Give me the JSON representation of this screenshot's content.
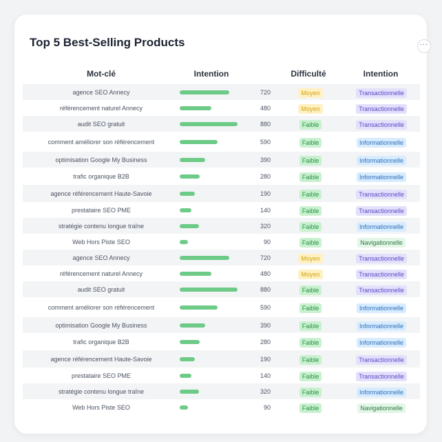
{
  "title": "Top 5 Best-Selling Products",
  "more_label": "···",
  "headers": {
    "keyword": "Mot-clé",
    "intent_bar": "Intention",
    "difficulty": "Difficulté",
    "intent": "Intention"
  },
  "colors": {
    "bar": "#6ecb87",
    "moyen": "#d6a20b",
    "faible": "#279245",
    "transactionnelle": "#5a47c9",
    "informationnelle": "#2f6fb8",
    "navigationnelle": "#2f7b44"
  },
  "rows": [
    {
      "keyword": "agence SEO Annecy",
      "level": 0.72,
      "volume": "720",
      "difficulty": "Moyen",
      "intent": "Transactionnelle"
    },
    {
      "keyword": "référencement naturel Annecy",
      "level": 0.46,
      "volume": "480",
      "difficulty": "Moyen",
      "intent": "Transactionnelle"
    },
    {
      "keyword": "audit SEO gratuit",
      "level": 0.84,
      "volume": "880",
      "difficulty": "Faible",
      "intent": "Transactionnelle"
    },
    {
      "keyword": "comment améliorer son référencement",
      "level": 0.55,
      "volume": "590",
      "difficulty": "Faible",
      "intent": "Informationnelle"
    },
    {
      "keyword": "optimisation Google My Business",
      "level": 0.37,
      "volume": "390",
      "difficulty": "Faible",
      "intent": "Informationnelle"
    },
    {
      "keyword": "trafic organique B2B",
      "level": 0.29,
      "volume": "280",
      "difficulty": "Faible",
      "intent": "Informationnelle"
    },
    {
      "keyword": "agence référencement Haute-Savoie",
      "level": 0.22,
      "volume": "190",
      "difficulty": "Faible",
      "intent": "Transactionnelle"
    },
    {
      "keyword": "prestataire SEO PME",
      "level": 0.17,
      "volume": "140",
      "difficulty": "Faible",
      "intent": "Transactionnelle"
    },
    {
      "keyword": "stratégie contenu longue traîne",
      "level": 0.28,
      "volume": "320",
      "difficulty": "Faible",
      "intent": "Informationnelle"
    },
    {
      "keyword": "Web Hors Piste SEO",
      "level": 0.12,
      "volume": "90",
      "difficulty": "Faible",
      "intent": "Navigationnelle"
    },
    {
      "keyword": "agence SEO Annecy",
      "level": 0.72,
      "volume": "720",
      "difficulty": "Moyen",
      "intent": "Transactionnelle"
    },
    {
      "keyword": "référencement naturel Annecy",
      "level": 0.46,
      "volume": "480",
      "difficulty": "Moyen",
      "intent": "Transactionnelle"
    },
    {
      "keyword": "audit SEO gratuit",
      "level": 0.84,
      "volume": "880",
      "difficulty": "Faible",
      "intent": "Transactionnelle"
    },
    {
      "keyword": "comment améliorer son référencement",
      "level": 0.55,
      "volume": "590",
      "difficulty": "Faible",
      "intent": "Informationnelle"
    },
    {
      "keyword": "optimisation Google My Business",
      "level": 0.37,
      "volume": "390",
      "difficulty": "Faible",
      "intent": "Informationnelle"
    },
    {
      "keyword": "trafic organique B2B",
      "level": 0.29,
      "volume": "280",
      "difficulty": "Faible",
      "intent": "Informationnelle"
    },
    {
      "keyword": "agence référencement Haute-Savoie",
      "level": 0.22,
      "volume": "190",
      "difficulty": "Faible",
      "intent": "Transactionnelle"
    },
    {
      "keyword": "prestataire SEO PME",
      "level": 0.17,
      "volume": "140",
      "difficulty": "Faible",
      "intent": "Transactionnelle"
    },
    {
      "keyword": "stratégie contenu longue traîne",
      "level": 0.28,
      "volume": "320",
      "difficulty": "Faible",
      "intent": "Informationnelle"
    },
    {
      "keyword": "Web Hors Piste SEO",
      "level": 0.12,
      "volume": "90",
      "difficulty": "Faible",
      "intent": "Navigationnelle"
    }
  ]
}
